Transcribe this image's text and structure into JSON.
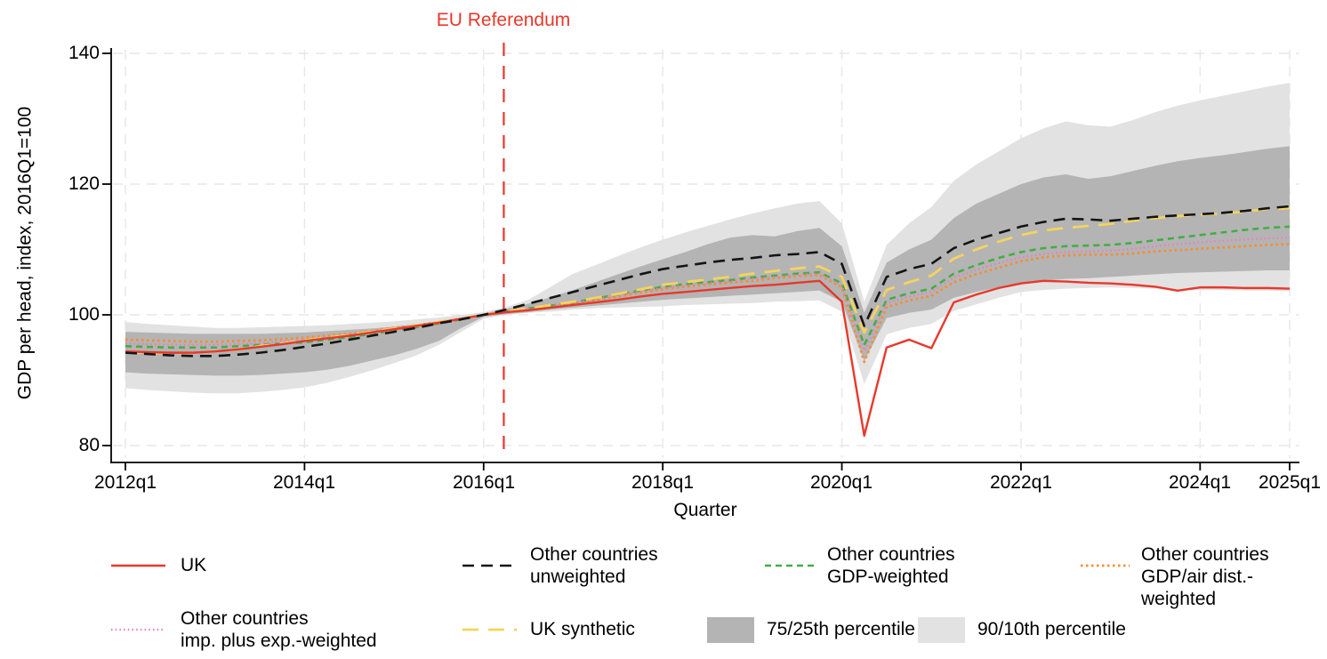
{
  "figure": {
    "y_axis_title": "GDP per head, index, 2016Q1=100",
    "x_axis_title": "Quarter",
    "annotation_text": "EU Referendum",
    "annotation_color": "#e8382b",
    "y_tick_labels": [
      "140",
      "120",
      "100",
      "80"
    ],
    "x_tick_labels": [
      "2012q1",
      "2014q1",
      "2016q1",
      "2018q1",
      "2020q1",
      "2022q1",
      "2024q1",
      "2025q1"
    ]
  },
  "legend": {
    "rows": [
      [
        {
          "label": "UK",
          "color": "#e8382b",
          "style": "solid"
        },
        {
          "label": "Other countries\nunweighted",
          "color": "#141414",
          "style": "dashed"
        },
        {
          "label": "Other countries\nGDP-weighted",
          "color": "#44ad44",
          "style": "short-dash"
        },
        {
          "label": "Other countries\nGDP/air dist.-weighted",
          "color": "#f68d2e",
          "style": "dotted"
        }
      ],
      [
        {
          "label": "Other countries\nimp. plus exp.-weighted",
          "color": "#f07ab8",
          "style": "fine-dotted"
        },
        {
          "label": "UK synthetic",
          "color": "#f5d35e",
          "style": "long-dash"
        },
        {
          "label": "75/25th percentile",
          "color": "#b4b4b4",
          "style": "area"
        },
        {
          "label": "90/10th percentile",
          "color": "#e2e2e2",
          "style": "area"
        }
      ]
    ]
  },
  "chart_data": {
    "type": "line",
    "title": "",
    "xlabel": "Quarter",
    "ylabel": "GDP per head, index, 2016Q1=100",
    "ylim": [
      80,
      140
    ],
    "grid": true,
    "legend_position": "bottom",
    "x": [
      "2012q1",
      "2012q2",
      "2012q3",
      "2012q4",
      "2013q1",
      "2013q2",
      "2013q3",
      "2013q4",
      "2014q1",
      "2014q2",
      "2014q3",
      "2014q4",
      "2015q1",
      "2015q2",
      "2015q3",
      "2015q4",
      "2016q1",
      "2016q2",
      "2016q3",
      "2016q4",
      "2017q1",
      "2017q2",
      "2017q3",
      "2017q4",
      "2018q1",
      "2018q2",
      "2018q3",
      "2018q4",
      "2019q1",
      "2019q2",
      "2019q3",
      "2019q4",
      "2020q1",
      "2020q2",
      "2020q3",
      "2020q4",
      "2021q1",
      "2021q2",
      "2021q3",
      "2021q4",
      "2022q1",
      "2022q2",
      "2022q3",
      "2022q4",
      "2023q1",
      "2023q2",
      "2023q3",
      "2023q4",
      "2024q1",
      "2024q2",
      "2024q3",
      "2024q4",
      "2025q1"
    ],
    "x_tick_indices": [
      0,
      8,
      16,
      24,
      32,
      40,
      48,
      52
    ],
    "y_ticks": [
      140,
      120,
      100,
      80
    ],
    "annotation": {
      "text": "EU Referendum",
      "x_index": 16.9,
      "line_style": "dashed",
      "color": "#e8382b"
    },
    "bands": [
      {
        "name": "90/10th percentile",
        "fill": "#e2e2e2",
        "upper": [
          98.9,
          98.6,
          98.4,
          98.2,
          98.0,
          98.0,
          98.1,
          98.2,
          98.3,
          98.4,
          98.6,
          98.8,
          99.0,
          99.3,
          99.6,
          100.0,
          100.4,
          101.2,
          102.3,
          104.3,
          106.3,
          107.6,
          109.0,
          110.3,
          111.5,
          112.6,
          113.6,
          114.6,
          115.5,
          116.3,
          117.0,
          117.4,
          114.0,
          102.0,
          110.7,
          114.0,
          116.5,
          120.5,
          123.0,
          125.0,
          127.0,
          128.5,
          129.6,
          129.0,
          128.8,
          129.8,
          131.0,
          132.0,
          132.8,
          133.5,
          134.2,
          134.9,
          135.5
        ],
        "lower": [
          88.8,
          88.5,
          88.3,
          88.1,
          88.0,
          88.0,
          88.2,
          88.5,
          88.9,
          89.6,
          90.5,
          91.5,
          92.6,
          93.8,
          95.4,
          97.4,
          99.4,
          100.0,
          100.3,
          100.5,
          100.8,
          101.0,
          101.1,
          101.2,
          101.3,
          101.5,
          101.6,
          101.7,
          101.8,
          102.0,
          102.1,
          102.2,
          100.5,
          89.4,
          97.0,
          98.0,
          98.6,
          100.6,
          101.6,
          102.6,
          103.5,
          103.8,
          104.0,
          104.1,
          104.2,
          104.1,
          104.0,
          103.9,
          103.8,
          103.8,
          103.7,
          103.7,
          103.6
        ]
      },
      {
        "name": "75/25th percentile",
        "fill": "#b4b4b4",
        "upper": [
          97.4,
          97.3,
          97.2,
          97.1,
          97.1,
          97.1,
          97.1,
          97.2,
          97.3,
          97.5,
          97.7,
          97.9,
          98.2,
          98.6,
          99.0,
          99.6,
          100.2,
          100.9,
          101.7,
          102.7,
          103.8,
          105.0,
          106.2,
          107.4,
          108.5,
          109.6,
          110.8,
          111.8,
          112.2,
          112.0,
          112.8,
          113.3,
          110.5,
          100.3,
          108.0,
          110.0,
          111.5,
          114.8,
          117.0,
          118.5,
          120.0,
          121.0,
          121.5,
          120.8,
          121.2,
          122.0,
          122.8,
          123.5,
          124.0,
          124.4,
          124.9,
          125.4,
          125.8
        ],
        "lower": [
          91.2,
          91.0,
          90.9,
          90.8,
          90.7,
          90.7,
          90.8,
          91.0,
          91.2,
          91.6,
          92.2,
          93.0,
          93.8,
          94.8,
          96.0,
          98.0,
          99.7,
          100.1,
          100.4,
          100.8,
          101.1,
          101.4,
          101.7,
          102.0,
          102.3,
          102.5,
          102.7,
          102.9,
          103.1,
          103.3,
          103.5,
          103.7,
          102.0,
          92.9,
          99.5,
          100.3,
          100.8,
          102.6,
          103.5,
          104.2,
          104.8,
          105.2,
          105.5,
          105.6,
          105.8,
          106.0,
          106.2,
          106.4,
          106.5,
          106.6,
          106.7,
          106.8,
          106.8
        ]
      }
    ],
    "series": [
      {
        "name": "Other countries GDP/air dist.-weighted",
        "color": "#f68d2e",
        "dash": "2.5 3.5",
        "width": 2.8,
        "values": [
          96.2,
          96.1,
          96.0,
          95.9,
          95.9,
          96.0,
          96.1,
          96.3,
          96.5,
          96.8,
          97.1,
          97.5,
          98.0,
          98.4,
          98.9,
          99.4,
          100.0,
          100.4,
          100.8,
          101.2,
          101.7,
          102.2,
          102.8,
          103.4,
          103.9,
          104.3,
          104.6,
          104.9,
          105.2,
          105.6,
          105.9,
          106.1,
          104.2,
          92.8,
          101.2,
          102.2,
          102.9,
          105.0,
          106.2,
          107.2,
          108.2,
          108.8,
          109.1,
          109.2,
          109.2,
          109.4,
          109.7,
          109.9,
          110.1,
          110.3,
          110.5,
          110.7,
          110.8
        ]
      },
      {
        "name": "Other countries GDP-weighted",
        "color": "#44ad44",
        "dash": "7 5",
        "width": 2.6,
        "values": [
          95.2,
          95.1,
          95.0,
          95.0,
          95.0,
          95.2,
          95.4,
          95.6,
          95.8,
          96.2,
          96.6,
          97.1,
          97.6,
          98.1,
          98.7,
          99.3,
          100.0,
          100.5,
          101.0,
          101.4,
          101.9,
          102.5,
          103.1,
          103.7,
          104.3,
          104.7,
          105.0,
          105.3,
          105.7,
          106.0,
          106.3,
          106.5,
          104.8,
          95.4,
          102.3,
          103.3,
          104.0,
          106.3,
          107.6,
          108.7,
          109.6,
          110.2,
          110.5,
          110.6,
          110.7,
          111.0,
          111.4,
          111.8,
          112.2,
          112.6,
          113.0,
          113.3,
          113.5
        ]
      },
      {
        "name": "Other countries imp. plus exp.-weighted",
        "color": "#f07ab8",
        "dash": "1.5 3.2",
        "width": 2.2,
        "values": [
          95.6,
          95.5,
          95.4,
          95.4,
          95.4,
          95.5,
          95.7,
          95.9,
          96.1,
          96.4,
          96.8,
          97.2,
          97.7,
          98.2,
          98.8,
          99.4,
          100.0,
          100.5,
          100.9,
          101.3,
          101.8,
          102.4,
          103.0,
          103.6,
          104.1,
          104.5,
          104.8,
          105.1,
          105.5,
          105.8,
          106.1,
          106.3,
          104.5,
          94.5,
          101.8,
          102.8,
          103.5,
          105.7,
          106.9,
          107.9,
          108.8,
          109.3,
          109.6,
          109.7,
          109.8,
          110.1,
          110.5,
          110.8,
          111.1,
          111.3,
          111.5,
          111.7,
          111.8
        ]
      },
      {
        "name": "UK synthetic",
        "color": "#f5d35e",
        "dash": "18 11",
        "width": 2.8,
        "values": [
          94.3,
          94.2,
          94.1,
          94.2,
          94.4,
          94.7,
          95.2,
          95.6,
          96.1,
          96.5,
          96.9,
          97.4,
          97.9,
          98.4,
          98.9,
          99.4,
          100.0,
          100.5,
          101.0,
          101.5,
          102.0,
          102.6,
          103.2,
          103.9,
          104.6,
          105.0,
          105.4,
          105.8,
          106.3,
          106.7,
          107.1,
          107.4,
          105.8,
          97.3,
          103.8,
          105.0,
          106.0,
          108.6,
          110.0,
          111.2,
          112.2,
          112.9,
          113.3,
          113.6,
          113.9,
          114.4,
          114.8,
          115.1,
          115.3,
          115.5,
          115.8,
          116.2,
          116.3
        ]
      },
      {
        "name": "UK",
        "color": "#e8382b",
        "dash": "",
        "width": 2.4,
        "values": [
          94.4,
          94.3,
          94.2,
          94.2,
          94.4,
          94.7,
          95.1,
          95.5,
          96.0,
          96.4,
          96.8,
          97.3,
          97.8,
          98.3,
          98.8,
          99.4,
          100.0,
          100.4,
          100.7,
          101.1,
          101.5,
          101.9,
          102.3,
          102.8,
          103.2,
          103.5,
          103.8,
          104.1,
          104.4,
          104.6,
          104.9,
          105.2,
          102.0,
          81.5,
          95.0,
          96.2,
          94.9,
          101.9,
          103.1,
          104.1,
          104.8,
          105.2,
          105.1,
          104.9,
          104.8,
          104.6,
          104.3,
          103.7,
          104.2,
          104.2,
          104.1,
          104.1,
          104.0
        ]
      },
      {
        "name": "Other countries unweighted",
        "color": "#141414",
        "dash": "13 8",
        "width": 2.6,
        "values": [
          94.2,
          94.0,
          93.8,
          93.7,
          93.7,
          93.9,
          94.2,
          94.6,
          95.1,
          95.6,
          96.2,
          96.8,
          97.4,
          98.0,
          98.7,
          99.3,
          100.0,
          100.8,
          101.7,
          102.6,
          103.5,
          104.4,
          105.3,
          106.2,
          107.0,
          107.5,
          108.0,
          108.4,
          108.7,
          109.1,
          109.3,
          109.6,
          107.8,
          98.3,
          105.8,
          107.0,
          107.8,
          110.2,
          111.5,
          112.5,
          113.5,
          114.2,
          114.7,
          114.6,
          114.4,
          114.7,
          115.0,
          115.2,
          115.4,
          115.6,
          115.9,
          116.3,
          116.6
        ]
      }
    ]
  }
}
